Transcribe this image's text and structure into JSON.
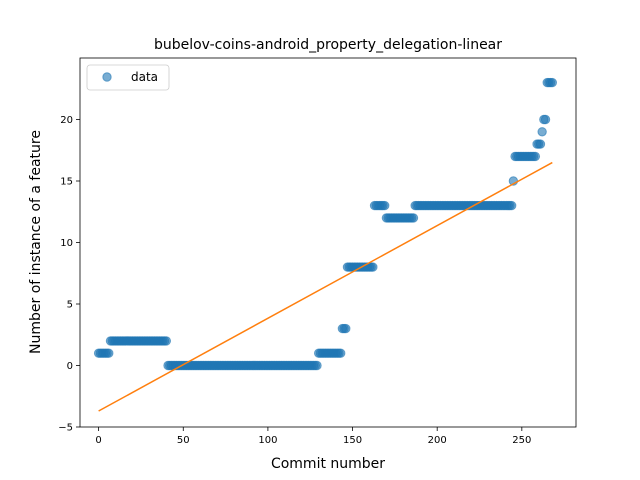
{
  "chart_data": {
    "type": "scatter",
    "title": "bubelov-coins-android_property_delegation-linear",
    "xlabel": "Commit number",
    "ylabel": "Number of instance of a feature",
    "xlim": [
      -11,
      282
    ],
    "ylim": [
      -5,
      25
    ],
    "xticks": [
      0,
      50,
      100,
      150,
      200,
      250
    ],
    "yticks": [
      -5,
      0,
      5,
      10,
      15,
      20
    ],
    "legend": {
      "position": "top-left",
      "entries": [
        "data"
      ]
    },
    "colors": {
      "points": "#1f77b4",
      "fit": "#ff7f0e"
    },
    "segments": [
      {
        "x_start": 0,
        "x_end": 6,
        "y": 1
      },
      {
        "x_start": 7,
        "x_end": 40,
        "y": 2
      },
      {
        "x_start": 41,
        "x_end": 129,
        "y": 0
      },
      {
        "x_start": 130,
        "x_end": 143,
        "y": 1
      },
      {
        "x_start": 144,
        "x_end": 146,
        "y": 3
      },
      {
        "x_start": 147,
        "x_end": 162,
        "y": 8
      },
      {
        "x_start": 163,
        "x_end": 169,
        "y": 13
      },
      {
        "x_start": 170,
        "x_end": 186,
        "y": 12
      },
      {
        "x_start": 187,
        "x_end": 244,
        "y": 13
      },
      {
        "x_start": 245,
        "x_end": 245,
        "y": 15
      },
      {
        "x_start": 246,
        "x_end": 258,
        "y": 17
      },
      {
        "x_start": 259,
        "x_end": 261,
        "y": 18
      },
      {
        "x_start": 262,
        "x_end": 262,
        "y": 19
      },
      {
        "x_start": 263,
        "x_end": 264,
        "y": 20
      },
      {
        "x_start": 265,
        "x_end": 268,
        "y": 23
      }
    ],
    "series": [
      {
        "name": "data",
        "kind": "points"
      },
      {
        "kind": "line",
        "fit": {
          "x": [
            0,
            268
          ],
          "y": [
            -3.7,
            16.5
          ]
        }
      }
    ]
  }
}
